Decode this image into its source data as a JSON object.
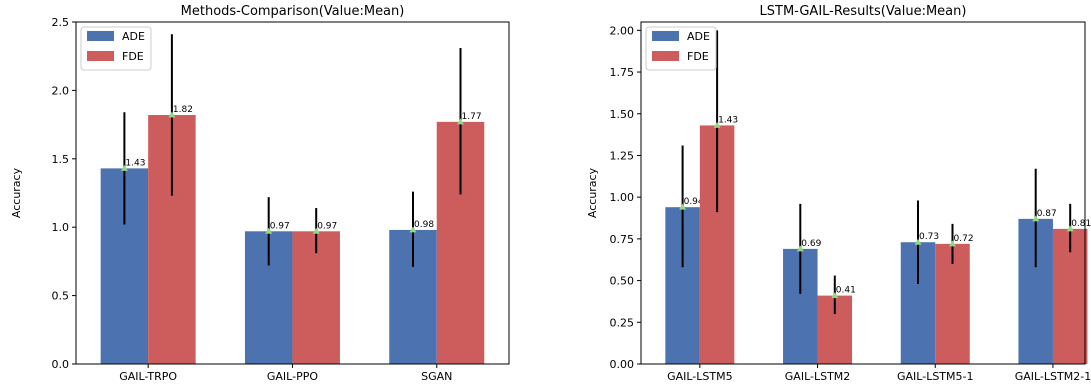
{
  "chart_data": [
    {
      "type": "bar",
      "title": "Methods-Comparison(Value:Mean)",
      "xlabel": "",
      "ylabel": "Accuracy",
      "ylim": [
        0,
        2.5
      ],
      "yticks": [
        "0.0",
        "0.5",
        "1.0",
        "1.5",
        "2.0",
        "2.5"
      ],
      "categories": [
        "GAIL-TRPO",
        "GAIL-PPO",
        "SGAN"
      ],
      "series": [
        {
          "name": "ADE",
          "color": "#4c72b0",
          "values": [
            1.43,
            0.97,
            0.98
          ],
          "error_low": [
            1.02,
            0.72,
            0.71
          ],
          "error_high": [
            1.84,
            1.22,
            1.26
          ],
          "labels": [
            "1.43",
            "0.97",
            "0.98"
          ]
        },
        {
          "name": "FDE",
          "color": "#cd5c5c",
          "values": [
            1.82,
            0.97,
            1.77
          ],
          "error_low": [
            1.23,
            0.81,
            1.24
          ],
          "error_high": [
            2.41,
            1.14,
            2.31
          ],
          "labels": [
            "1.82",
            "0.97",
            "1.77"
          ]
        }
      ],
      "legend": "top-left",
      "grid": false
    },
    {
      "type": "bar",
      "title": "LSTM-GAIL-Results(Value:Mean)",
      "xlabel": "",
      "ylabel": "Accuracy",
      "ylim": [
        0,
        2.05
      ],
      "yticks": [
        "0.00",
        "0.25",
        "0.50",
        "0.75",
        "1.00",
        "1.25",
        "1.50",
        "1.75",
        "2.00"
      ],
      "categories": [
        "GAIL-LSTM5",
        "GAIL-LSTM2",
        "GAIL-LSTM5-1",
        "GAIL-LSTM2-1"
      ],
      "series": [
        {
          "name": "ADE",
          "color": "#4c72b0",
          "values": [
            0.94,
            0.69,
            0.73,
            0.87
          ],
          "error_low": [
            0.58,
            0.42,
            0.48,
            0.58
          ],
          "error_high": [
            1.31,
            0.96,
            0.98,
            1.17
          ],
          "labels": [
            "0.94",
            "0.69",
            "0.73",
            "0.87"
          ]
        },
        {
          "name": "FDE",
          "color": "#cd5c5c",
          "values": [
            1.43,
            0.41,
            0.72,
            0.81
          ],
          "error_low": [
            0.91,
            0.3,
            0.6,
            0.67
          ],
          "error_high": [
            2.0,
            0.53,
            0.84,
            0.96
          ],
          "labels": [
            "1.43",
            "0.41",
            "0.72",
            "0.81"
          ]
        }
      ],
      "legend": "top-left",
      "grid": false
    }
  ],
  "colors": {
    "ade": "#4c72b0",
    "fde": "#cd5c5c",
    "mean_marker": "#8fd97f",
    "error_bar": "#000000"
  }
}
